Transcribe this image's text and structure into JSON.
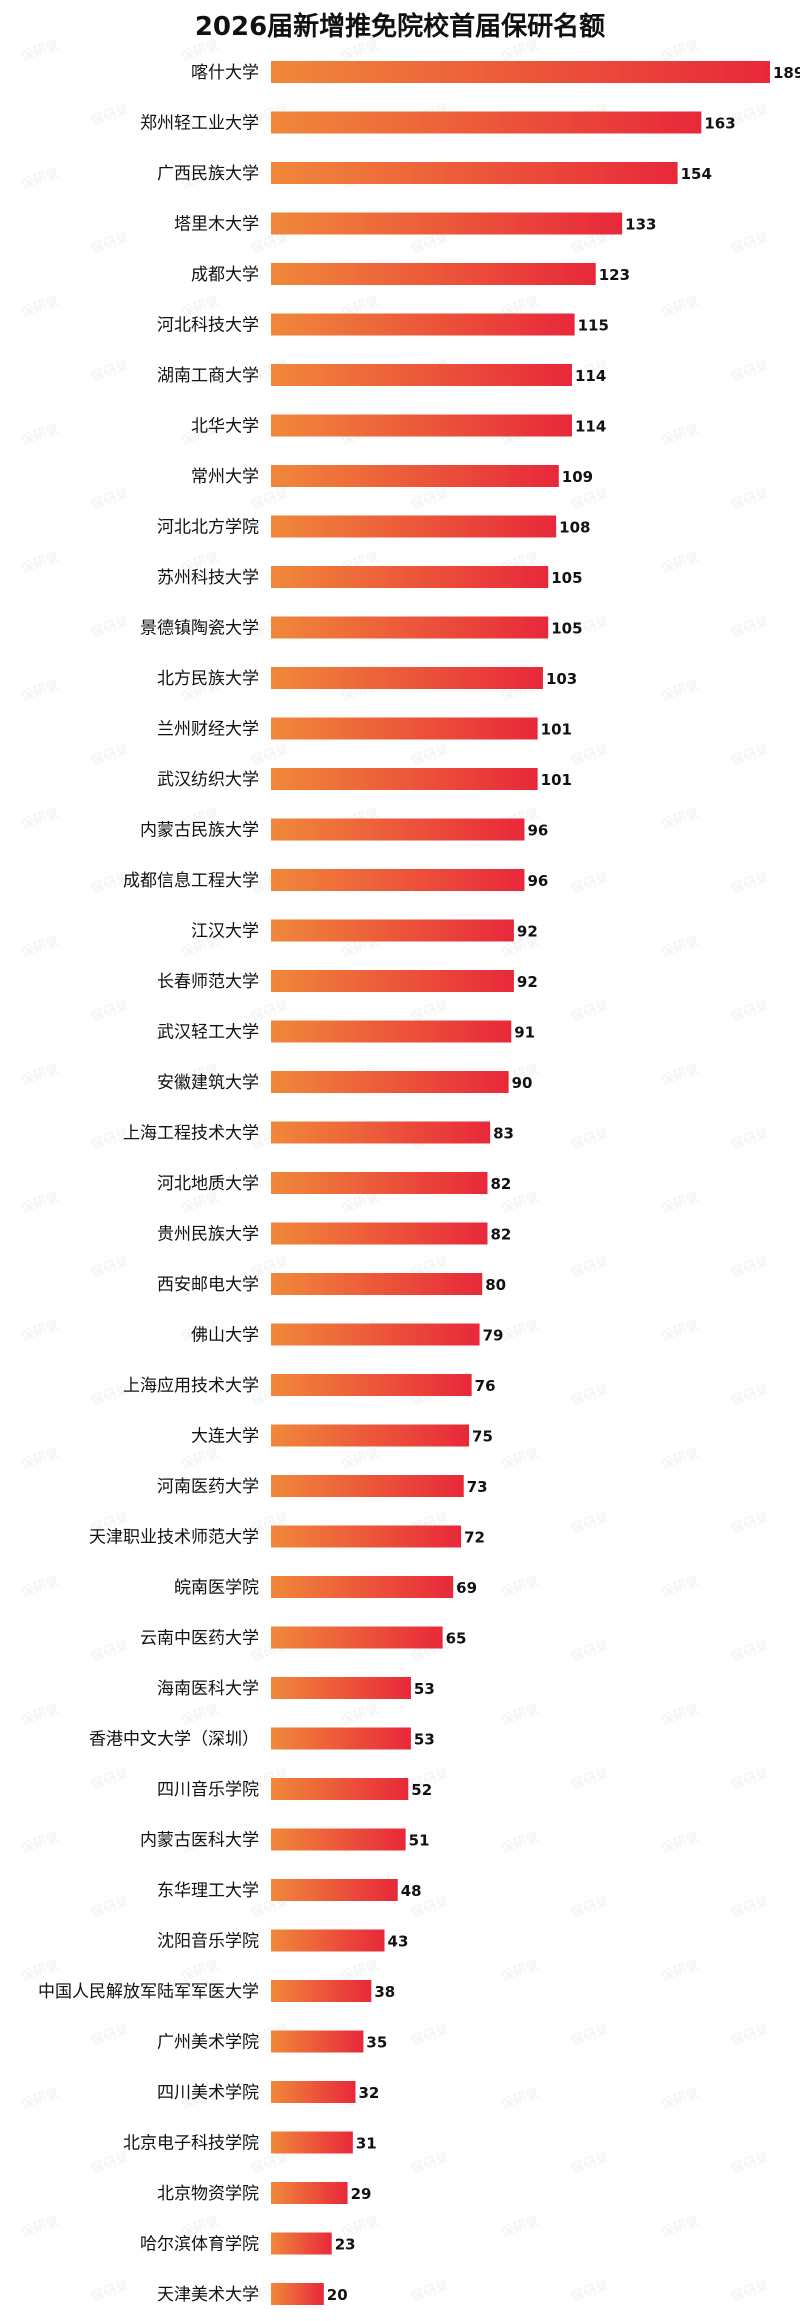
{
  "chart_data": {
    "type": "bar",
    "orientation": "horizontal",
    "title": "2026届新增推免院校首届保研名额",
    "watermark": "保研录",
    "xlim": [
      0,
      189
    ],
    "grid": false,
    "legend": "none",
    "colors": {
      "bar_start": "#f0883a",
      "bar_end": "#e8283a"
    },
    "categories": [
      "喀什大学",
      "郑州轻工业大学",
      "广西民族大学",
      "塔里木大学",
      "成都大学",
      "河北科技大学",
      "湖南工商大学",
      "北华大学",
      "常州大学",
      "河北北方学院",
      "苏州科技大学",
      "景德镇陶瓷大学",
      "北方民族大学",
      "兰州财经大学",
      "武汉纺织大学",
      "内蒙古民族大学",
      "成都信息工程大学",
      "江汉大学",
      "长春师范大学",
      "武汉轻工大学",
      "安徽建筑大学",
      "上海工程技术大学",
      "河北地质大学",
      "贵州民族大学",
      "西安邮电大学",
      "佛山大学",
      "上海应用技术大学",
      "大连大学",
      "河南医药大学",
      "天津职业技术师范大学",
      "皖南医学院",
      "云南中医药大学",
      "海南医科大学",
      "香港中文大学（深圳）",
      "四川音乐学院",
      "内蒙古医科大学",
      "东华理工大学",
      "沈阳音乐学院",
      "中国人民解放军陆军军医大学",
      "广州美术学院",
      "四川美术学院",
      "北京电子科技学院",
      "北京物资学院",
      "哈尔滨体育学院",
      "天津美术大学"
    ],
    "values": [
      189,
      163,
      154,
      133,
      123,
      115,
      114,
      114,
      109,
      108,
      105,
      105,
      103,
      101,
      101,
      96,
      96,
      92,
      92,
      91,
      90,
      83,
      82,
      82,
      80,
      79,
      76,
      75,
      73,
      72,
      69,
      65,
      53,
      53,
      52,
      51,
      48,
      43,
      38,
      35,
      32,
      31,
      29,
      23,
      20
    ]
  }
}
